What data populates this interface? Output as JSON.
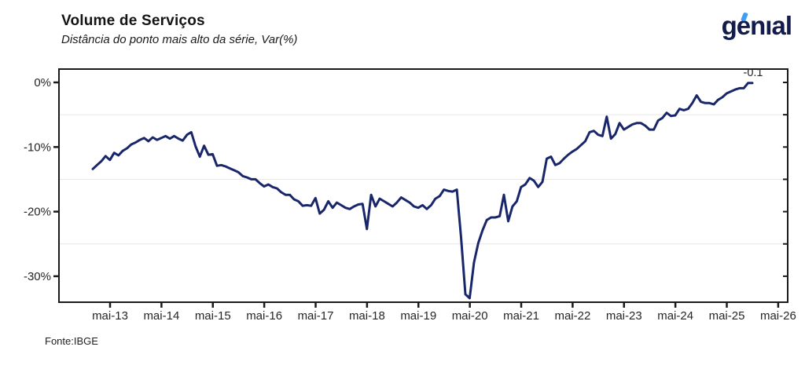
{
  "header": {
    "title": "Volume de Serviços",
    "subtitle": "Distância do ponto mais alto da série, Var(%)"
  },
  "logo": {
    "text": "genıal",
    "navy": "#141b4d",
    "accent_blue": "#3f9ff2"
  },
  "footer": {
    "source": "Fonte:IBGE"
  },
  "chart_data": {
    "type": "line",
    "title": "Volume de Serviços",
    "subtitle": "Distância do ponto mais alto da série, Var(%)",
    "source": "Fonte:IBGE",
    "x_tick_labels": [
      "mai-13",
      "mai-14",
      "mai-15",
      "mai-16",
      "mai-17",
      "mai-18",
      "mai-19",
      "mai-20",
      "mai-21",
      "mai-22",
      "mai-23",
      "mai-24",
      "mai-25",
      "mai-26"
    ],
    "y_tick_labels": [
      "0%",
      "-10%",
      "-20%",
      "-30%"
    ],
    "y_tick_values": [
      0,
      -10,
      -20,
      -30
    ],
    "minor_gridline_values": [
      -5,
      -15,
      -25
    ],
    "ylim": [
      -34,
      2
    ],
    "grid": "minor horizontal only",
    "legend": "none",
    "last_point_label": "-0.1",
    "colors": {
      "line": "#19276a",
      "axis": "#1a1a1a",
      "text": "#262626",
      "gridline": "#e7e7e7"
    },
    "series": [
      {
        "name": "Volume de Serviços - distância do pico (%)",
        "color": "#19276a",
        "start_month": "jan-2013",
        "frequency": "monthly",
        "values": [
          -13.4,
          -12.8,
          -12.2,
          -11.4,
          -12.0,
          -10.9,
          -11.3,
          -10.6,
          -10.2,
          -9.6,
          -9.3,
          -8.9,
          -8.6,
          -9.1,
          -8.5,
          -8.9,
          -8.6,
          -8.3,
          -8.7,
          -8.3,
          -8.7,
          -9.0,
          -8.1,
          -7.7,
          -9.9,
          -11.5,
          -9.8,
          -11.2,
          -11.1,
          -12.9,
          -12.8,
          -13.0,
          -13.3,
          -13.6,
          -13.9,
          -14.5,
          -14.7,
          -15.0,
          -15.0,
          -15.6,
          -16.1,
          -15.8,
          -16.2,
          -16.4,
          -17.0,
          -17.4,
          -17.4,
          -18.1,
          -18.4,
          -19.1,
          -19.0,
          -19.1,
          -17.9,
          -20.3,
          -19.7,
          -18.4,
          -19.4,
          -18.6,
          -19.0,
          -19.4,
          -19.6,
          -19.2,
          -18.9,
          -18.8,
          -22.7,
          -17.4,
          -19.2,
          -18.0,
          -18.4,
          -18.8,
          -19.2,
          -18.6,
          -17.8,
          -18.2,
          -18.6,
          -19.2,
          -19.4,
          -19.0,
          -19.6,
          -19.0,
          -18.0,
          -17.6,
          -16.6,
          -16.8,
          -16.9,
          -16.6,
          -24.0,
          -32.8,
          -33.4,
          -27.9,
          -24.9,
          -22.9,
          -21.3,
          -20.9,
          -20.9,
          -20.7,
          -17.4,
          -21.5,
          -19.2,
          -18.4,
          -16.2,
          -15.8,
          -14.8,
          -15.2,
          -16.2,
          -15.4,
          -11.8,
          -11.5,
          -12.8,
          -12.5,
          -11.8,
          -11.2,
          -10.7,
          -10.3,
          -9.7,
          -9.1,
          -7.7,
          -7.5,
          -8.1,
          -8.3,
          -5.3,
          -8.7,
          -8.0,
          -6.3,
          -7.3,
          -6.9,
          -6.5,
          -6.3,
          -6.3,
          -6.7,
          -7.3,
          -7.3,
          -5.9,
          -5.5,
          -4.7,
          -5.2,
          -5.1,
          -4.1,
          -4.3,
          -4.1,
          -3.2,
          -2.0,
          -3.0,
          -3.2,
          -3.2,
          -3.4,
          -2.7,
          -2.3,
          -1.7,
          -1.4,
          -1.1,
          -0.9,
          -0.9,
          -0.1,
          -0.1
        ]
      }
    ]
  }
}
